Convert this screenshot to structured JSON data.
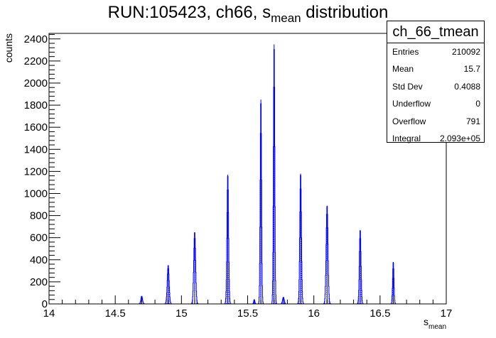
{
  "title": {
    "main": "RUN:105423, ch66, s",
    "sub": "mean",
    "rest": " distribution"
  },
  "stats": {
    "name": "ch_66_tmean",
    "rows": [
      {
        "key": "Entries",
        "value": "210092"
      },
      {
        "key": "Mean",
        "value": "15.7"
      },
      {
        "key": "Std Dev",
        "value": "0.4088"
      },
      {
        "key": "Underflow",
        "value": "0"
      },
      {
        "key": "Overflow",
        "value": "791"
      },
      {
        "key": "Integral",
        "value": "2.093e+05"
      }
    ]
  },
  "colors": {
    "histogram": "#0000ff",
    "axis": "#000000"
  },
  "chart_data": {
    "type": "histogram",
    "ylabel": "counts",
    "xlabel": {
      "main": "s",
      "sub": "mean"
    },
    "xlim": [
      14,
      17
    ],
    "ylim": [
      0,
      2450
    ],
    "x_ticks": [
      "14",
      "14.5",
      "15",
      "15.5",
      "16",
      "16.5",
      "17"
    ],
    "y_ticks": [
      "0",
      "200",
      "400",
      "600",
      "800",
      "1000",
      "1200",
      "1400",
      "1600",
      "1800",
      "2000",
      "2200",
      "2400"
    ],
    "fill_style": "hatched",
    "peaks": [
      {
        "x": 14.7,
        "height": 70,
        "width": 0.006
      },
      {
        "x": 14.9,
        "height": 350,
        "width": 0.007
      },
      {
        "x": 15.1,
        "height": 650,
        "width": 0.007
      },
      {
        "x": 15.35,
        "height": 1170,
        "width": 0.006
      },
      {
        "x": 15.55,
        "height": 40,
        "width": 0.004
      },
      {
        "x": 15.6,
        "height": 1850,
        "width": 0.005
      },
      {
        "x": 15.7,
        "height": 2350,
        "width": 0.005
      },
      {
        "x": 15.77,
        "height": 60,
        "width": 0.006
      },
      {
        "x": 15.9,
        "height": 1180,
        "width": 0.006
      },
      {
        "x": 16.1,
        "height": 890,
        "width": 0.007
      },
      {
        "x": 16.35,
        "height": 670,
        "width": 0.006
      },
      {
        "x": 16.6,
        "height": 380,
        "width": 0.005
      }
    ]
  }
}
